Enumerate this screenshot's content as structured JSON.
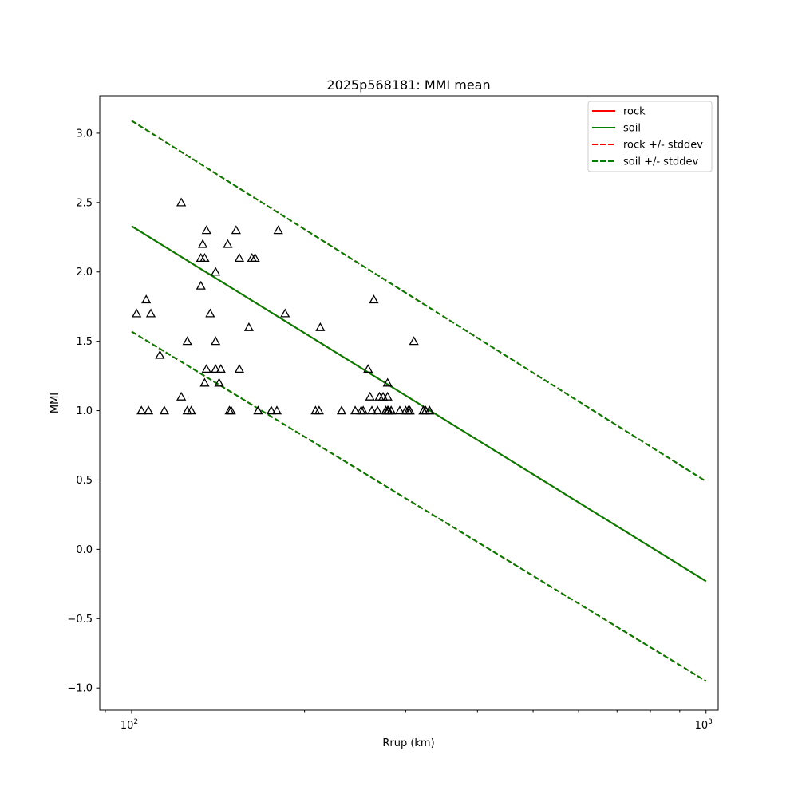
{
  "chart_data": {
    "type": "scatter",
    "title": "2025p568181: MMI mean",
    "xlabel": "Rrup (km)",
    "ylabel": "MMI",
    "xscale": "log",
    "xlim": [
      88,
      1050
    ],
    "ylim": [
      -1.16,
      3.27
    ],
    "x_ticks": [
      {
        "value": 100,
        "label": "10",
        "exp": "2"
      },
      {
        "value": 1000,
        "label": "10",
        "exp": "3"
      }
    ],
    "y_ticks": [
      {
        "value": 3.0,
        "label": "3.0"
      },
      {
        "value": 2.5,
        "label": "2.5"
      },
      {
        "value": 2.0,
        "label": "2.0"
      },
      {
        "value": 1.5,
        "label": "1.5"
      },
      {
        "value": 1.0,
        "label": "1.0"
      },
      {
        "value": 0.5,
        "label": "0.5"
      },
      {
        "value": 0.0,
        "label": "0.0"
      },
      {
        "value": -0.5,
        "label": "−0.5"
      },
      {
        "value": -1.0,
        "label": "−1.0"
      }
    ],
    "grid": false,
    "legend_position": "top-right",
    "lines": [
      {
        "name": "rock",
        "color": "#ff0000",
        "dash": false,
        "x": [
          100,
          1000
        ],
        "y": [
          2.33,
          -0.23
        ]
      },
      {
        "name": "soil",
        "color": "#008000",
        "dash": false,
        "x": [
          100,
          1000
        ],
        "y": [
          2.33,
          -0.23
        ]
      },
      {
        "name": "rock +/- stddev",
        "color": "#ff0000",
        "dash": true,
        "x": [
          100,
          1000
        ],
        "y": [
          3.09,
          0.49
        ]
      },
      {
        "name": "rock +/- stddev",
        "color": "#ff0000",
        "dash": true,
        "x": [
          100,
          1000
        ],
        "y": [
          1.57,
          -0.95
        ]
      },
      {
        "name": "soil +/- stddev",
        "color": "#008000",
        "dash": true,
        "x": [
          100,
          1000
        ],
        "y": [
          3.09,
          0.49
        ]
      },
      {
        "name": "soil +/- stddev",
        "color": "#008000",
        "dash": true,
        "x": [
          100,
          1000
        ],
        "y": [
          1.57,
          -0.95
        ]
      }
    ],
    "legend": [
      {
        "label": "rock",
        "color": "#ff0000",
        "dash": false
      },
      {
        "label": "soil",
        "color": "#008000",
        "dash": false
      },
      {
        "label": "rock +/- stddev",
        "color": "#ff0000",
        "dash": true
      },
      {
        "label": "soil +/- stddev",
        "color": "#008000",
        "dash": true
      }
    ],
    "points": {
      "marker": "triangle",
      "x": [
        102,
        104,
        106,
        107,
        108,
        112,
        114,
        122,
        122,
        125,
        125,
        127,
        132,
        132,
        133,
        134,
        134,
        135,
        135,
        137,
        140,
        140,
        140,
        142,
        143,
        147,
        148,
        149,
        152,
        154,
        154,
        160,
        162,
        164,
        166,
        175,
        179,
        180,
        185,
        209,
        212,
        213,
        232,
        245,
        251,
        253,
        258,
        260,
        262,
        264,
        268,
        270,
        274,
        277,
        277,
        279,
        279,
        279,
        280,
        280,
        280,
        283,
        283,
        293,
        300,
        303,
        305,
        305,
        310,
        322,
        322,
        325,
        330,
        330
      ],
      "y": [
        1.7,
        1.0,
        1.8,
        1.0,
        1.7,
        1.4,
        1.0,
        2.5,
        1.1,
        1.0,
        1.5,
        1.0,
        2.1,
        1.9,
        2.2,
        2.1,
        1.2,
        2.3,
        1.3,
        1.7,
        1.3,
        2.0,
        1.5,
        1.2,
        1.3,
        2.2,
        1.0,
        1.0,
        2.3,
        2.1,
        1.3,
        1.6,
        2.1,
        2.1,
        1.0,
        1.0,
        1.0,
        2.3,
        1.7,
        1.0,
        1.0,
        1.6,
        1.0,
        1.0,
        1.0,
        1.0,
        1.3,
        1.1,
        1.0,
        1.8,
        1.0,
        1.1,
        1.1,
        1.0,
        1.0,
        1.2,
        1.1,
        1.0,
        1.0,
        1.0,
        1.0,
        1.0,
        1.0,
        1.0,
        1.0,
        1.0,
        1.0,
        1.0,
        1.5,
        1.0,
        1.0,
        1.0,
        1.0,
        1.0
      ]
    }
  }
}
